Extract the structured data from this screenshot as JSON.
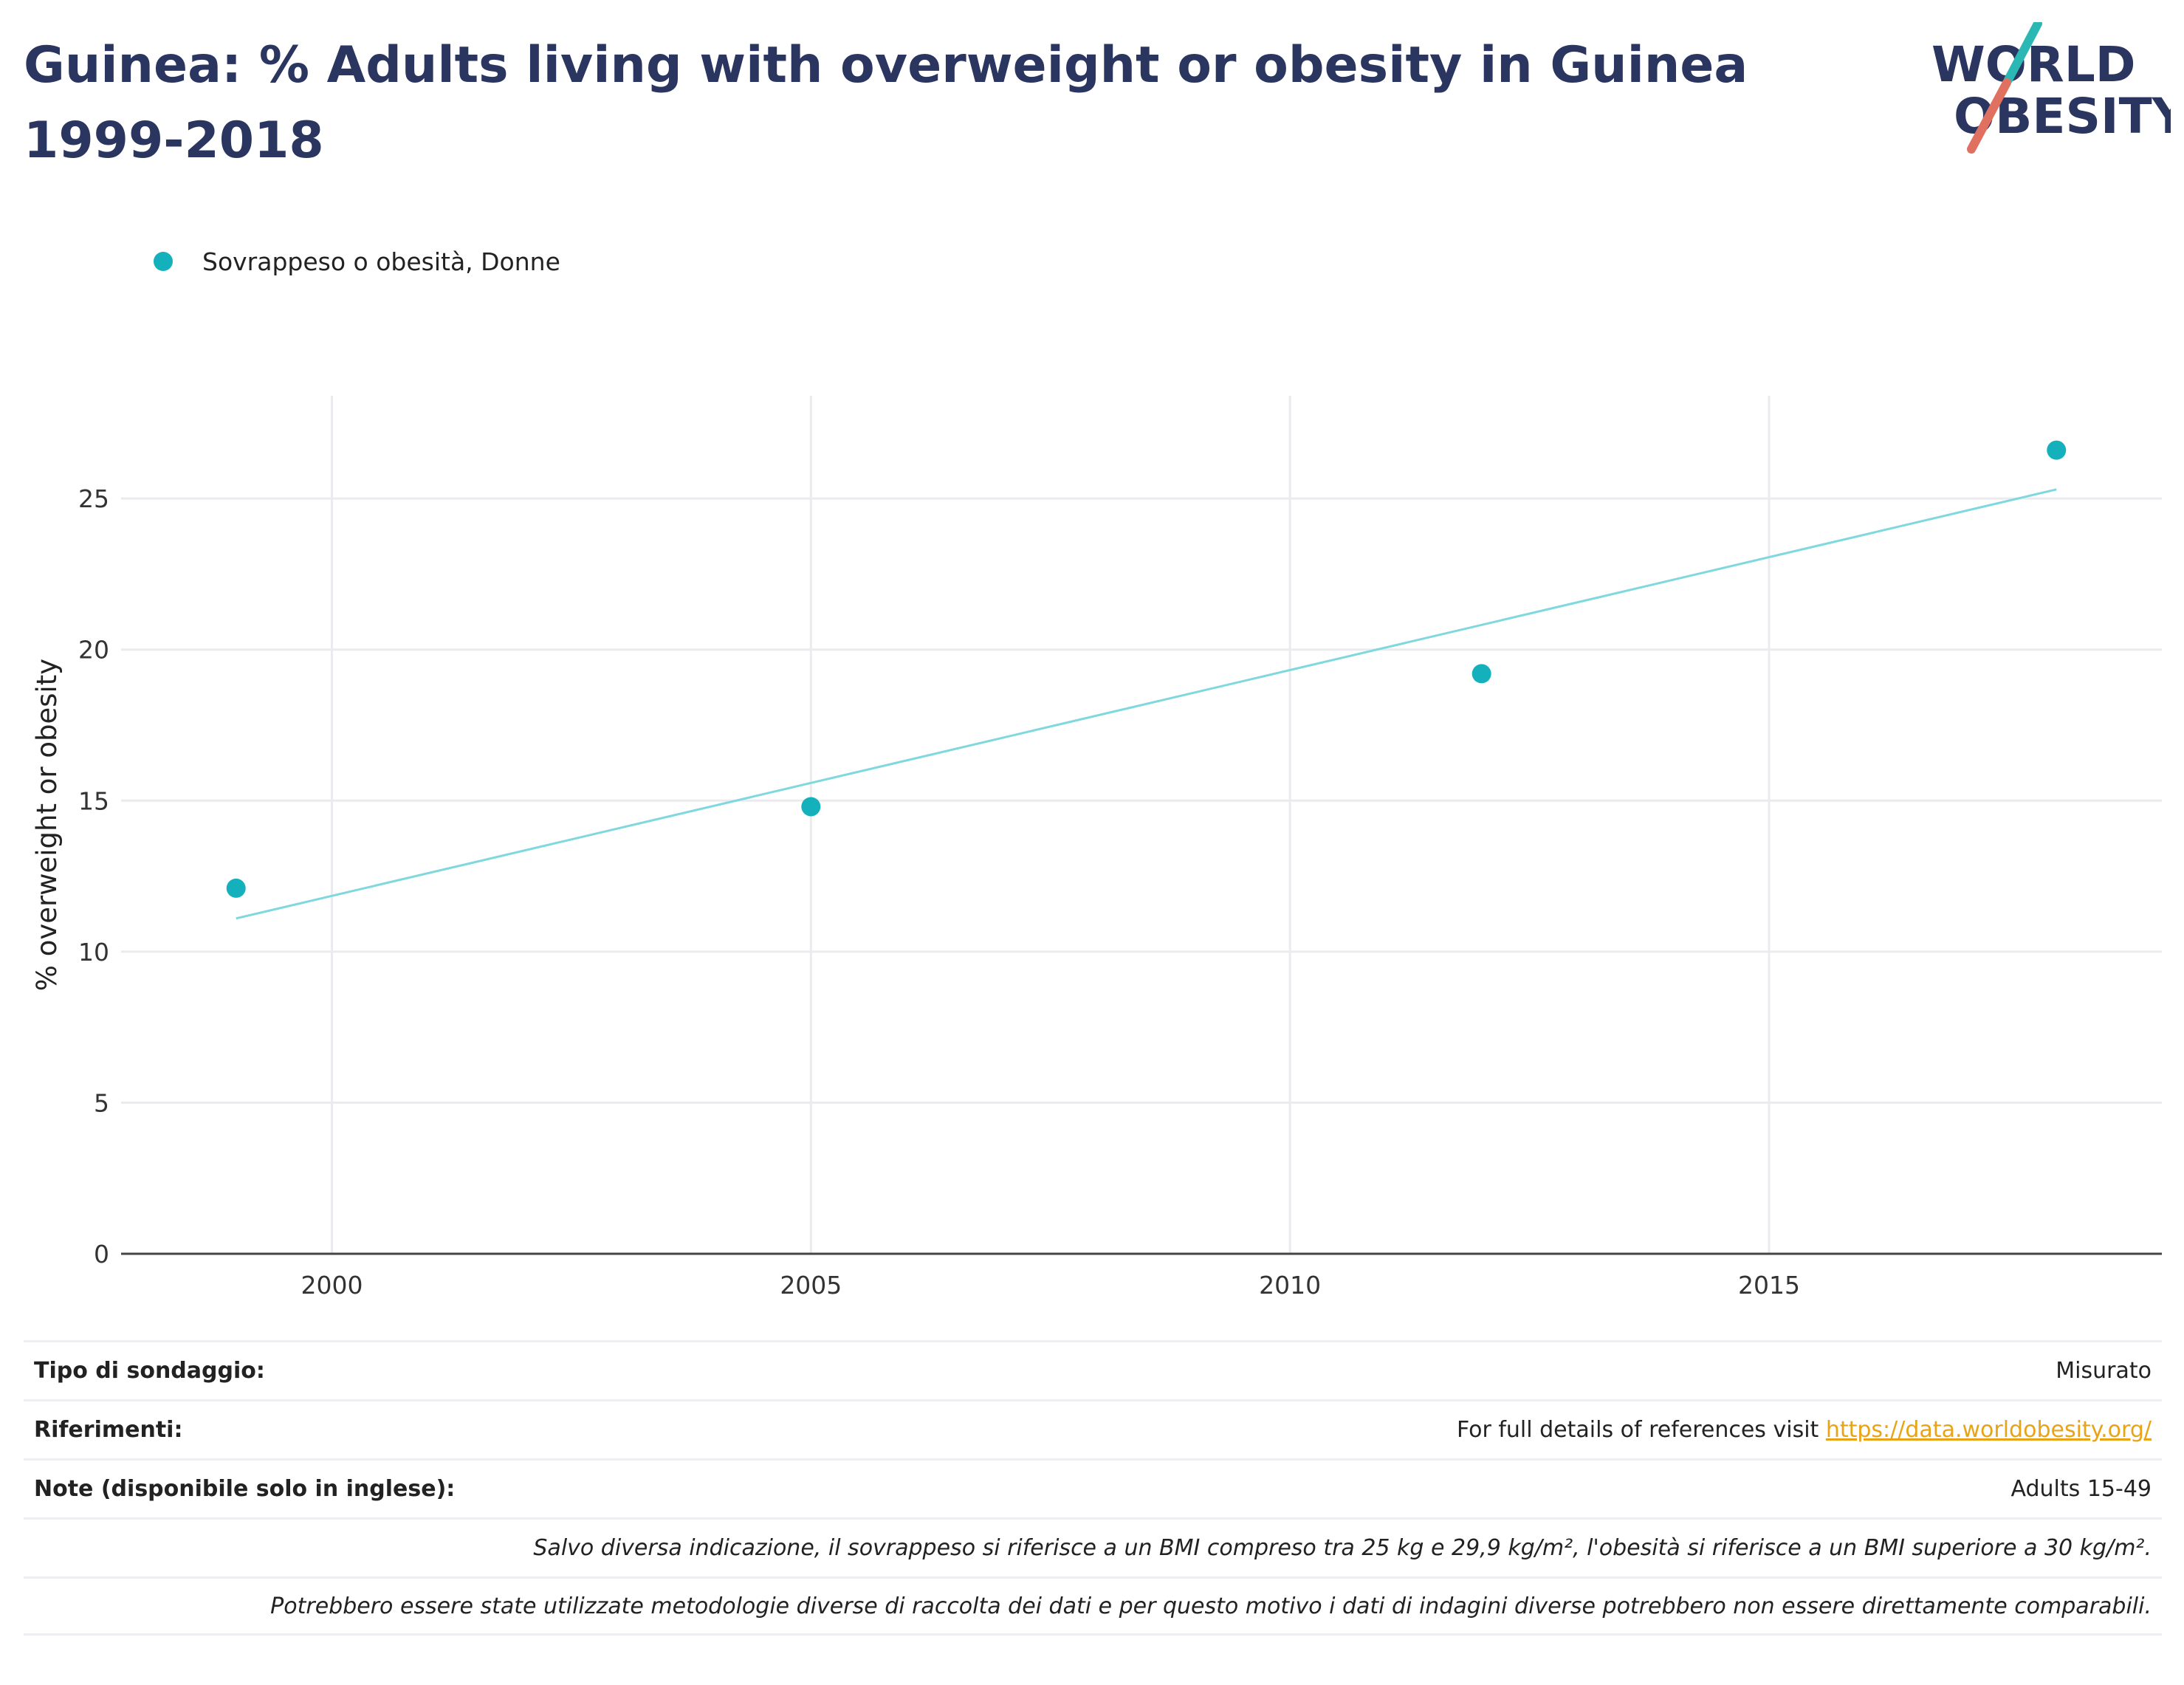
{
  "chart_data": {
    "type": "scatter",
    "title": "Guinea: % Adults living with overweight or obesity in Guinea 1999-2018",
    "ylabel": "% overweight or obesity",
    "xlabel": "",
    "xlim": [
      1997.8,
      2019.1
    ],
    "ylim": [
      0,
      28.4
    ],
    "x_ticks": [
      2000,
      2005,
      2010,
      2015
    ],
    "y_ticks": [
      0,
      5,
      10,
      15,
      20,
      25
    ],
    "grid": true,
    "legend_position": "top-left",
    "series": [
      {
        "name": "Sovrappeso o obesità, Donne",
        "color": "#14b1bd",
        "points": [
          {
            "x": 1999,
            "y": 12.1
          },
          {
            "x": 2005,
            "y": 14.8
          },
          {
            "x": 2012,
            "y": 19.2
          },
          {
            "x": 2018,
            "y": 26.6
          }
        ]
      }
    ],
    "trendline": {
      "color": "#7fd8de",
      "points": [
        {
          "x": 1999,
          "y": 11.1
        },
        {
          "x": 2018,
          "y": 25.3
        }
      ]
    }
  },
  "logo": {
    "line1": "WORLD",
    "line2": "OBESITY",
    "text_color": "#2a3560",
    "teal": "#2bb7b3",
    "coral": "#e0705f"
  },
  "info": {
    "survey_type_label": "Tipo di sondaggio:",
    "survey_type_value": "Misurato",
    "references_label": "Riferimenti:",
    "references_text": "For full details of references visit ",
    "references_link": "https://data.worldobesity.org/",
    "notes_label": "Note (disponibile solo in inglese):",
    "notes_value": "Adults 15-49",
    "note_bmi": "Salvo diversa indicazione, il sovrappeso si riferisce a un BMI compreso tra 25 kg e 29,9 kg/m², l'obesità si riferisce a un BMI superiore a 30 kg/m².",
    "note_methods": "Potrebbero essere state utilizzate metodologie diverse di raccolta dei dati e per questo motivo i dati di indagini diverse potrebbero non essere direttamente comparabili."
  }
}
